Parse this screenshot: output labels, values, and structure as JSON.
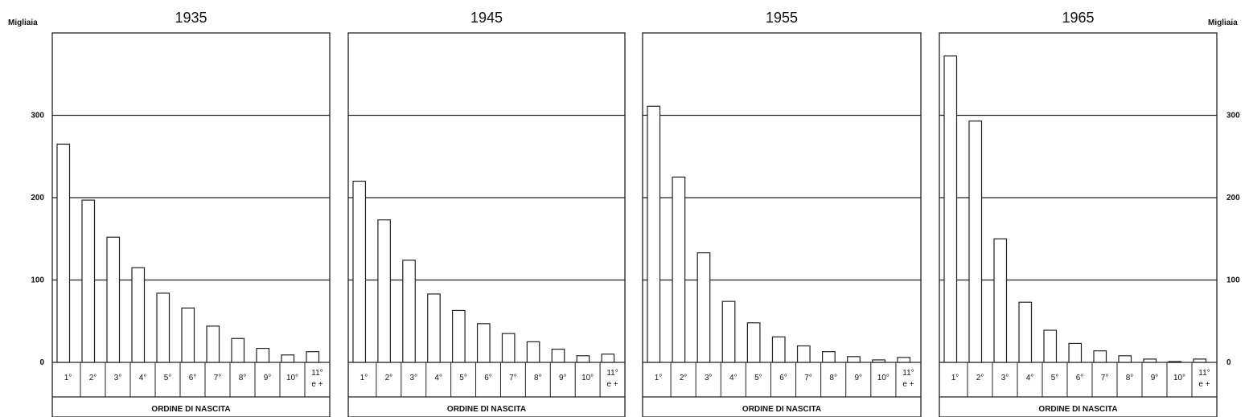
{
  "unit_label_left": "Migliaia",
  "unit_label_right": "Migliaia",
  "chart_data": [
    {
      "type": "bar",
      "title": "1935",
      "xlabel": "ORDINE DI NASCITA",
      "ylabel": "Migliaia",
      "ylim": [
        0,
        400
      ],
      "yticks": [
        "0",
        "100",
        "200",
        "300"
      ],
      "grid": true,
      "categories": [
        "1°",
        "2°",
        "3°",
        "4°",
        "5°",
        "6°",
        "7°",
        "8°",
        "9°",
        "10°",
        "11° e +"
      ],
      "values": [
        265,
        197,
        152,
        115,
        84,
        66,
        44,
        29,
        17,
        9,
        13
      ]
    },
    {
      "type": "bar",
      "title": "1945",
      "xlabel": "ORDINE DI NASCITA",
      "ylabel": "",
      "ylim": [
        0,
        400
      ],
      "grid": true,
      "categories": [
        "1°",
        "2°",
        "3°",
        "4°",
        "5°",
        "6°",
        "7°",
        "8°",
        "9°",
        "10°",
        "11° e +"
      ],
      "values": [
        220,
        173,
        124,
        83,
        63,
        47,
        35,
        25,
        16,
        8,
        10
      ]
    },
    {
      "type": "bar",
      "title": "1955",
      "xlabel": "ORDINE DI NASCITA",
      "ylabel": "",
      "ylim": [
        0,
        400
      ],
      "grid": true,
      "categories": [
        "1°",
        "2°",
        "3°",
        "4°",
        "5°",
        "6°",
        "7°",
        "8°",
        "9°",
        "10°",
        "11° e +"
      ],
      "values": [
        311,
        225,
        133,
        74,
        48,
        31,
        20,
        13,
        7,
        3,
        6
      ]
    },
    {
      "type": "bar",
      "title": "1965",
      "xlabel": "ORDINE DI NASCITA",
      "ylabel": "Migliaia",
      "ylim": [
        0,
        400
      ],
      "yticks": [
        "0",
        "100",
        "200",
        "300"
      ],
      "grid": true,
      "categories": [
        "1°",
        "2°",
        "3°",
        "4°",
        "5°",
        "6°",
        "7°",
        "8°",
        "9°",
        "10°",
        "11° e +"
      ],
      "values": [
        372,
        293,
        150,
        73,
        39,
        23,
        14,
        8,
        4,
        1,
        4
      ]
    }
  ]
}
